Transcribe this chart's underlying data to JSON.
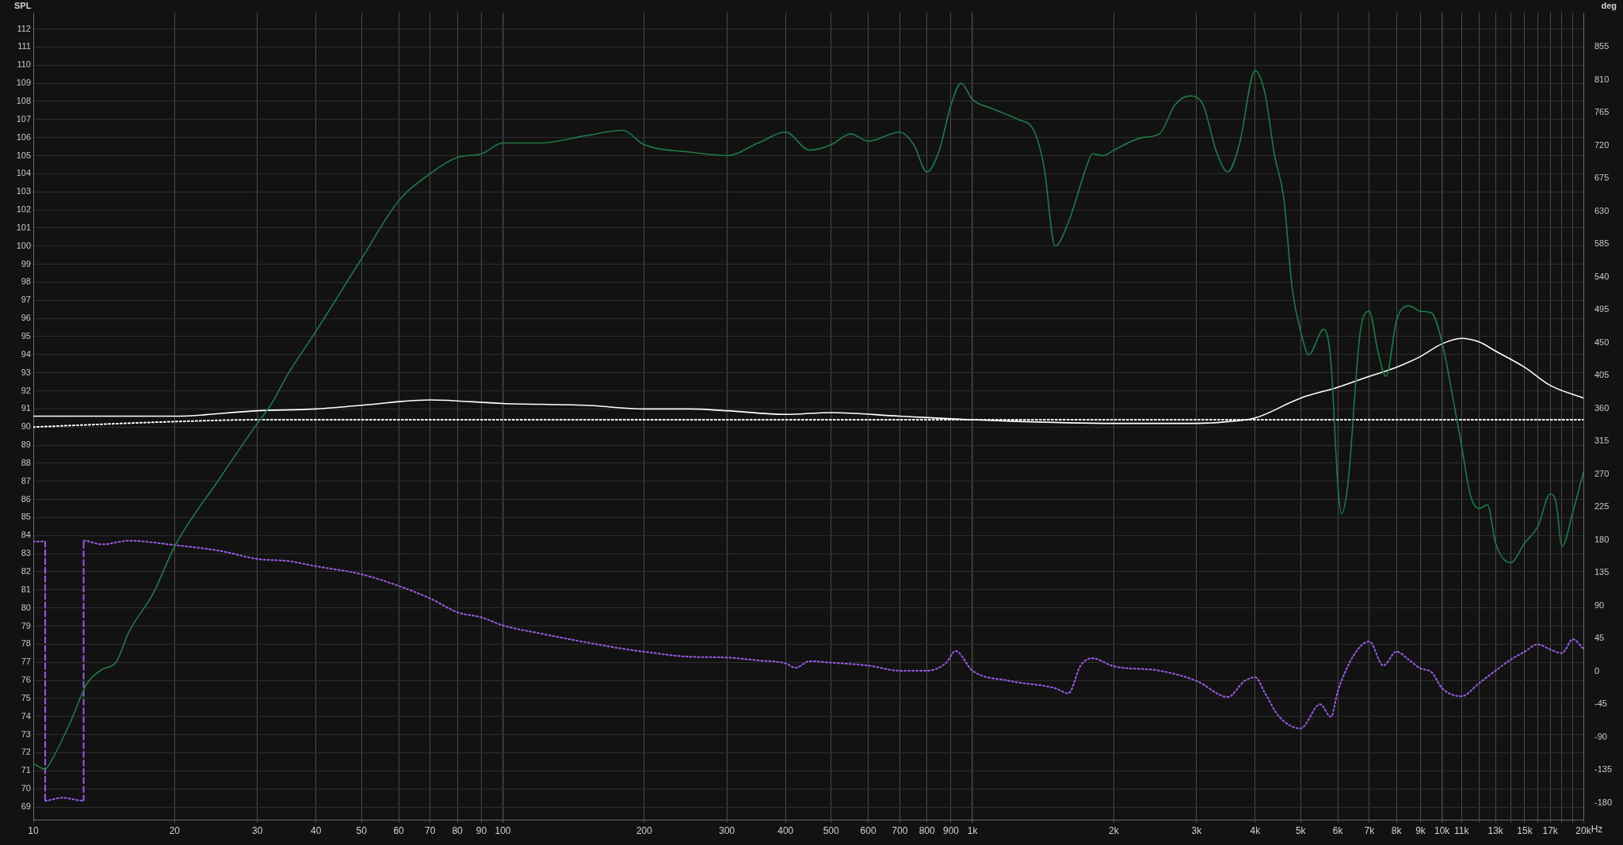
{
  "chart_data": {
    "type": "line",
    "ylabel": "SPL",
    "y2label": "deg",
    "log": "x",
    "grid": true,
    "marker": "none",
    "xlim": [
      10,
      20000
    ],
    "xticks": [
      10,
      20,
      30,
      40,
      50,
      60,
      70,
      80,
      90,
      100,
      200,
      300,
      400,
      500,
      600,
      700,
      800,
      900,
      {
        "value": 1000,
        "label": "1k"
      },
      {
        "value": 2000,
        "label": "2k"
      },
      {
        "value": 3000,
        "label": "3k"
      },
      {
        "value": 4000,
        "label": "4k"
      },
      {
        "value": 5000,
        "label": "5k"
      },
      {
        "value": 6000,
        "label": "6k"
      },
      {
        "value": 7000,
        "label": "7k"
      },
      {
        "value": 8000,
        "label": "8k"
      },
      {
        "value": 9000,
        "label": "9k"
      },
      {
        "value": 10000,
        "label": "10k"
      },
      {
        "value": 11000,
        "label": "11k"
      },
      {
        "value": 12000,
        "label": null
      },
      {
        "value": 13000,
        "label": "13k"
      },
      {
        "value": 14000,
        "label": null
      },
      {
        "value": 15000,
        "label": "15k"
      },
      {
        "value": 16000,
        "label": null
      },
      {
        "value": 17000,
        "label": "17k"
      },
      {
        "value": 18000,
        "label": null
      },
      {
        "value": 19000,
        "label": null
      },
      {
        "value": 20000,
        "label": "20k"
      }
    ],
    "xlabel": "Hz",
    "ylim": [
      68.3,
      112.9
    ],
    "yticks": [
      69,
      70,
      71,
      72,
      73,
      74,
      75,
      76,
      77,
      78,
      79,
      80,
      81,
      82,
      83,
      84,
      85,
      86,
      87,
      88,
      89,
      90,
      91,
      92,
      93,
      94,
      95,
      96,
      97,
      98,
      99,
      100,
      101,
      102,
      103,
      104,
      105,
      106,
      107,
      108,
      109,
      110,
      111,
      112
    ],
    "y2lim": [
      -203,
      902
    ],
    "y2ticks": [
      -180,
      -135,
      -90,
      -45,
      0,
      45,
      90,
      135,
      180,
      225,
      270,
      315,
      360,
      405,
      450,
      495,
      540,
      585,
      630,
      675,
      720,
      765,
      810,
      855
    ],
    "series": [
      {
        "color": "#1f7a47",
        "line_style": "solid",
        "x": [
          10,
          10.6,
          11,
          12,
          13,
          14,
          15,
          16,
          18,
          20,
          25,
          30,
          32,
          35,
          40,
          50,
          60,
          70,
          80,
          90,
          100,
          120,
          150,
          180,
          200,
          250,
          300,
          350,
          400,
          450,
          500,
          550,
          600,
          700,
          750,
          800,
          850,
          900,
          946,
          1000,
          1100,
          1250,
          1350,
          1420,
          1500,
          1600,
          1750,
          1800,
          1900,
          2000,
          2300,
          2500,
          2700,
          2900,
          3100,
          3300,
          3500,
          3700,
          4000,
          4200,
          4400,
          4600,
          4800,
          5000,
          5200,
          5600,
          5800,
          6000,
          6100,
          6300,
          6700,
          7000,
          7300,
          7600,
          8000,
          8500,
          9000,
          9500,
          10000,
          10500,
          11000,
          11500,
          12000,
          12500,
          13000,
          14000,
          15000,
          16000,
          17000,
          17500,
          18000,
          19000,
          20000
        ],
        "values": [
          71.4,
          71.1,
          71.7,
          73.7,
          75.8,
          76.6,
          77.0,
          78.7,
          80.8,
          83.4,
          87.2,
          90.2,
          91.2,
          93.0,
          95.3,
          99.3,
          102.5,
          104.0,
          104.9,
          105.1,
          105.7,
          105.7,
          106.1,
          106.4,
          105.6,
          105.2,
          105.0,
          105.7,
          106.3,
          105.3,
          105.6,
          106.2,
          105.8,
          106.3,
          105.6,
          104.1,
          105.3,
          107.8,
          109.0,
          108.1,
          107.6,
          107.0,
          106.4,
          104.4,
          100.0,
          101.3,
          104.4,
          105.1,
          105.0,
          105.3,
          106.0,
          106.2,
          107.8,
          108.3,
          107.8,
          105.3,
          104.1,
          105.6,
          109.7,
          108.4,
          105.0,
          102.7,
          97.6,
          95.3,
          94.0,
          95.4,
          93.6,
          86.8,
          85.2,
          86.8,
          95.3,
          96.4,
          94.2,
          92.8,
          95.9,
          96.7,
          96.4,
          96.3,
          94.7,
          91.9,
          89.0,
          86.2,
          85.5,
          85.7,
          83.6,
          82.5,
          83.6,
          84.5,
          86.3,
          85.8,
          83.4,
          85.3,
          87.5
        ]
      },
      {
        "color": "#ffffff",
        "line_style": "solid",
        "x": [
          10,
          20,
          30,
          40,
          50,
          70,
          100,
          150,
          200,
          250,
          300,
          400,
          500,
          700,
          1000,
          2000,
          3000,
          3500,
          4000,
          5000,
          6000,
          7000,
          8000,
          9000,
          10000,
          11000,
          12000,
          13000,
          15000,
          17000,
          20000
        ],
        "values": [
          90.6,
          90.6,
          90.9,
          91.0,
          91.2,
          91.5,
          91.3,
          91.2,
          91.0,
          91.0,
          90.9,
          90.7,
          90.8,
          90.6,
          90.4,
          90.2,
          90.2,
          90.3,
          90.5,
          91.6,
          92.2,
          92.8,
          93.3,
          93.9,
          94.6,
          94.9,
          94.7,
          94.2,
          93.3,
          92.3,
          91.6
        ]
      },
      {
        "color": "#ffffff",
        "line_style": "dotted",
        "x": [
          10,
          20,
          30,
          100,
          20000
        ],
        "values": [
          90.0,
          90.3,
          90.4,
          90.4,
          90.4
        ]
      },
      {
        "color": "#9b5de5",
        "line_style": "dotted",
        "axis": "y2",
        "x": [
          10,
          10.6,
          10.6,
          11.5,
          12.8,
          12.8,
          14,
          16,
          20,
          25,
          30,
          35,
          40,
          50,
          60,
          70,
          80,
          90,
          100,
          120,
          150,
          180,
          200,
          250,
          300,
          350,
          400,
          420,
          450,
          500,
          600,
          700,
          800,
          880,
          920,
          1000,
          1200,
          1500,
          1600,
          1700,
          1800,
          2000,
          2500,
          3000,
          3500,
          3800,
          4000,
          4200,
          4500,
          5000,
          5500,
          5800,
          6000,
          6500,
          7000,
          7500,
          8000,
          8500,
          9000,
          9500,
          10000,
          11000,
          12000,
          13000,
          14000,
          15000,
          16000,
          17000,
          18000,
          19000,
          20000
        ],
        "values": [
          178,
          178,
          -177,
          -173,
          -177,
          179,
          174,
          179,
          173,
          165,
          154,
          151,
          144,
          133,
          117,
          100,
          81,
          74,
          63,
          52,
          40,
          31,
          27,
          20,
          19,
          15,
          11,
          5,
          14,
          12,
          8,
          1,
          1,
          12,
          28,
          1,
          -13,
          -23,
          -30,
          8,
          18,
          7,
          1,
          -13,
          -35,
          -13,
          -8,
          -30,
          -62,
          -78,
          -45,
          -62,
          -27,
          23,
          41,
          8,
          27,
          16,
          4,
          -1,
          -23,
          -34,
          -16,
          1,
          16,
          27,
          37,
          30,
          25,
          44,
          31
        ]
      }
    ]
  }
}
